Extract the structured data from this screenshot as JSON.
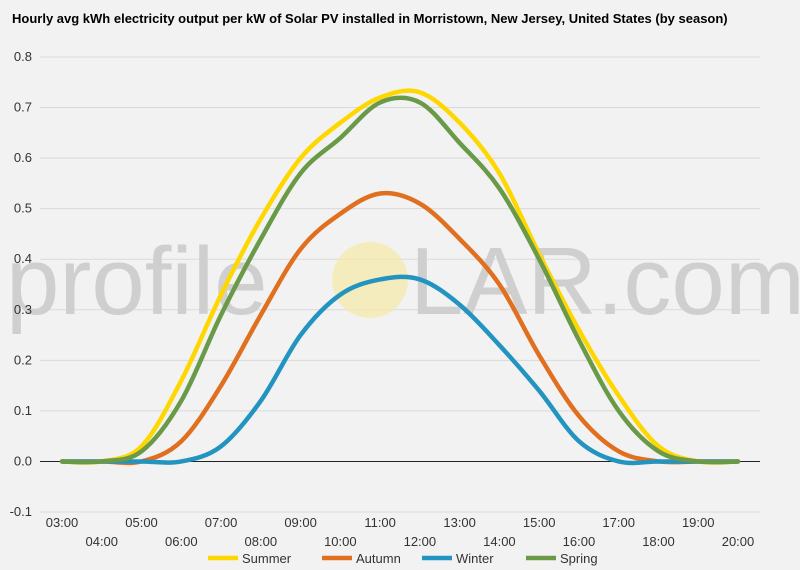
{
  "chart_data": {
    "type": "line",
    "title": "Hourly avg kWh electricity output per kW of Solar PV installed in Morristown, New Jersey, United States (by season)",
    "xlabel": "",
    "ylabel": "",
    "x": [
      "03:00",
      "04:00",
      "05:00",
      "06:00",
      "07:00",
      "08:00",
      "09:00",
      "10:00",
      "11:00",
      "12:00",
      "13:00",
      "14:00",
      "15:00",
      "16:00",
      "17:00",
      "18:00",
      "19:00",
      "20:00"
    ],
    "ylim": [
      -0.1,
      0.8
    ],
    "yticks": [
      "-0.1",
      "0.0",
      "0.1",
      "0.2",
      "0.3",
      "0.4",
      "0.5",
      "0.6",
      "0.7",
      "0.8"
    ],
    "grid": true,
    "legend_position": "bottom",
    "series": [
      {
        "name": "Summer",
        "color": "#ffd700",
        "values": [
          0.0,
          0.0,
          0.03,
          0.16,
          0.33,
          0.48,
          0.6,
          0.67,
          0.72,
          0.73,
          0.67,
          0.57,
          0.41,
          0.26,
          0.13,
          0.03,
          0.0,
          0.0
        ]
      },
      {
        "name": "Autumn",
        "color": "#e07020",
        "values": [
          0.0,
          0.0,
          0.0,
          0.04,
          0.15,
          0.29,
          0.42,
          0.49,
          0.53,
          0.51,
          0.44,
          0.35,
          0.21,
          0.09,
          0.02,
          0.0,
          0.0,
          0.0
        ]
      },
      {
        "name": "Winter",
        "color": "#2394c0",
        "values": [
          0.0,
          0.0,
          0.0,
          0.0,
          0.03,
          0.12,
          0.25,
          0.33,
          0.36,
          0.36,
          0.31,
          0.23,
          0.14,
          0.04,
          0.0,
          0.0,
          0.0,
          0.0
        ]
      },
      {
        "name": "Spring",
        "color": "#6a9a48",
        "values": [
          0.0,
          0.0,
          0.02,
          0.12,
          0.29,
          0.44,
          0.57,
          0.64,
          0.71,
          0.71,
          0.63,
          0.54,
          0.4,
          0.24,
          0.1,
          0.02,
          0.0,
          0.0
        ]
      }
    ]
  },
  "watermark": {
    "text_before": "profile",
    "text_after": "LAR.com",
    "sun_color": "#f5e6a0"
  }
}
